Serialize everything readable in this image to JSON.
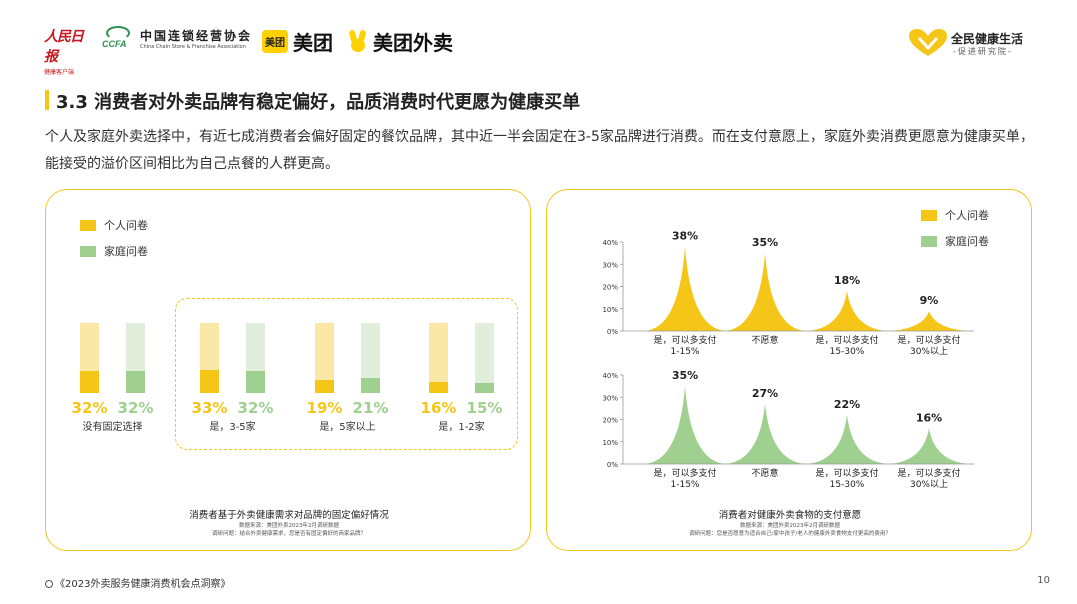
{
  "header": {
    "logo_renmin": "人民日报",
    "logo_renmin_sub": "健康客户端",
    "logo_ccfa_mark": "CCFA",
    "logo_ccfa_cn": "中国连锁经营协会",
    "logo_ccfa_en": "China Chain Store & Franchise Association",
    "logo_meituan_box": "美团",
    "logo_meituan": "美团",
    "logo_meituan_waimai": "美团外卖",
    "logo_quanmin": "全民健康生活",
    "logo_quanmin_sub": "-促进研究院-"
  },
  "title": "3.3 消费者对外卖品牌有稳定偏好，品质消费时代更愿为健康买单",
  "intro": "个人及家庭外卖选择中，有近七成消费者会偏好固定的餐饮品牌，其中近一半会固定在3-5家品牌进行消费。而在支付意愿上，家庭外卖消费更愿意为健康买单，能接受的溢价区间相比为自己点餐的人群更高。",
  "colors": {
    "accent": "#f5c518",
    "personal": "#f5c518",
    "personal_light": "#fbe8a6",
    "family": "#9fd08f",
    "family_light": "#e2eedc"
  },
  "legend": {
    "personal": "个人问卷",
    "family": "家庭问卷"
  },
  "chart_data": [
    {
      "type": "bar",
      "title": "消费者基于外卖健康需求对品牌的固定偏好情况",
      "source": "数据来源：美团外卖2023年2月调研数据",
      "question": "调研问题：结合外卖健康需求，您是否有固定偏好的商家品牌？",
      "categories": [
        "没有固定选择",
        "是，3-5家",
        "是，5家以上",
        "是，1-2家"
      ],
      "series": [
        {
          "name": "个人问卷",
          "values": [
            32,
            33,
            19,
            16
          ],
          "labels": [
            "32%",
            "33%",
            "19%",
            "16%"
          ]
        },
        {
          "name": "家庭问卷",
          "values": [
            32,
            32,
            21,
            15
          ],
          "labels": [
            "32%",
            "32%",
            "21%",
            "15%"
          ]
        }
      ]
    },
    {
      "type": "area",
      "title": "消费者对健康外卖食物的支付意愿",
      "source": "数据来源：美团外卖2023年2月调研数据",
      "question": "调研问题：您是否愿意为适合自己/家中孩子/老人的健康外卖食物支付更高的费用？",
      "categories": [
        "是，可以多支付\n1-15%",
        "不愿意",
        "是，可以多支付\n15-30%",
        "是，可以多支付\n30%以上"
      ],
      "yticks": [
        "40%",
        "30%",
        "20%",
        "10%",
        "0%"
      ],
      "ylim": [
        0,
        40
      ],
      "series": [
        {
          "name": "个人问卷",
          "values": [
            38,
            35,
            18,
            9
          ],
          "labels": [
            "38%",
            "35%",
            "18%",
            "9%"
          ]
        },
        {
          "name": "家庭问卷",
          "values": [
            35,
            27,
            22,
            16
          ],
          "labels": [
            "35%",
            "27%",
            "22%",
            "16%"
          ]
        }
      ]
    }
  ],
  "footer": "《2023外卖服务健康消费机会点洞察》",
  "page_number": "10"
}
